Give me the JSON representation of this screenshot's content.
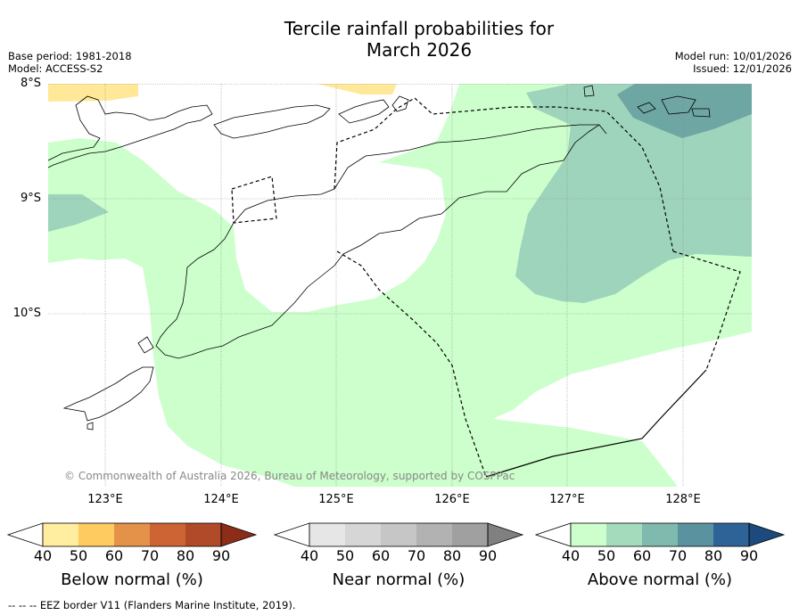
{
  "title_line1": "Tercile rainfall probabilities for",
  "title_line2": "March 2026",
  "meta": {
    "base_period": "Base period: 1981-2018",
    "model": "Model: ACCESS-S2",
    "model_run": "Model run: 10/01/2026",
    "issued": "Issued: 12/01/2026"
  },
  "map": {
    "lat_labels": [
      "8°S",
      "9°S",
      "10°S"
    ],
    "lon_labels": [
      "123°E",
      "124°E",
      "125°E",
      "126°E",
      "127°E",
      "128°E"
    ],
    "copyright": "© Commonwealth of Australia 2026, Bureau of Meteorology, supported by COSPPac"
  },
  "colorbars": [
    {
      "label": "Below normal (%)",
      "ticks": [
        "40",
        "50",
        "60",
        "70",
        "80",
        "90"
      ],
      "colors": [
        "#ffeda0",
        "#fecb61",
        "#e4924a",
        "#cc6433",
        "#b04a29",
        "#8c2d19"
      ]
    },
    {
      "label": "Near normal (%)",
      "ticks": [
        "40",
        "50",
        "60",
        "70",
        "80",
        "90"
      ],
      "colors": [
        "#e6e6e6",
        "#d6d6d6",
        "#c6c6c6",
        "#b2b2b2",
        "#a0a0a0",
        "#808080"
      ]
    },
    {
      "label": "Above normal (%)",
      "ticks": [
        "40",
        "50",
        "60",
        "70",
        "80",
        "90"
      ],
      "colors": [
        "#ccffcc",
        "#a4dbbc",
        "#80b9ad",
        "#5a92a0",
        "#2e6398",
        "#1c4a7c"
      ]
    }
  ],
  "footer": "--  --  -- EEZ border V11 (Flanders Marine Institute, 2019)."
}
